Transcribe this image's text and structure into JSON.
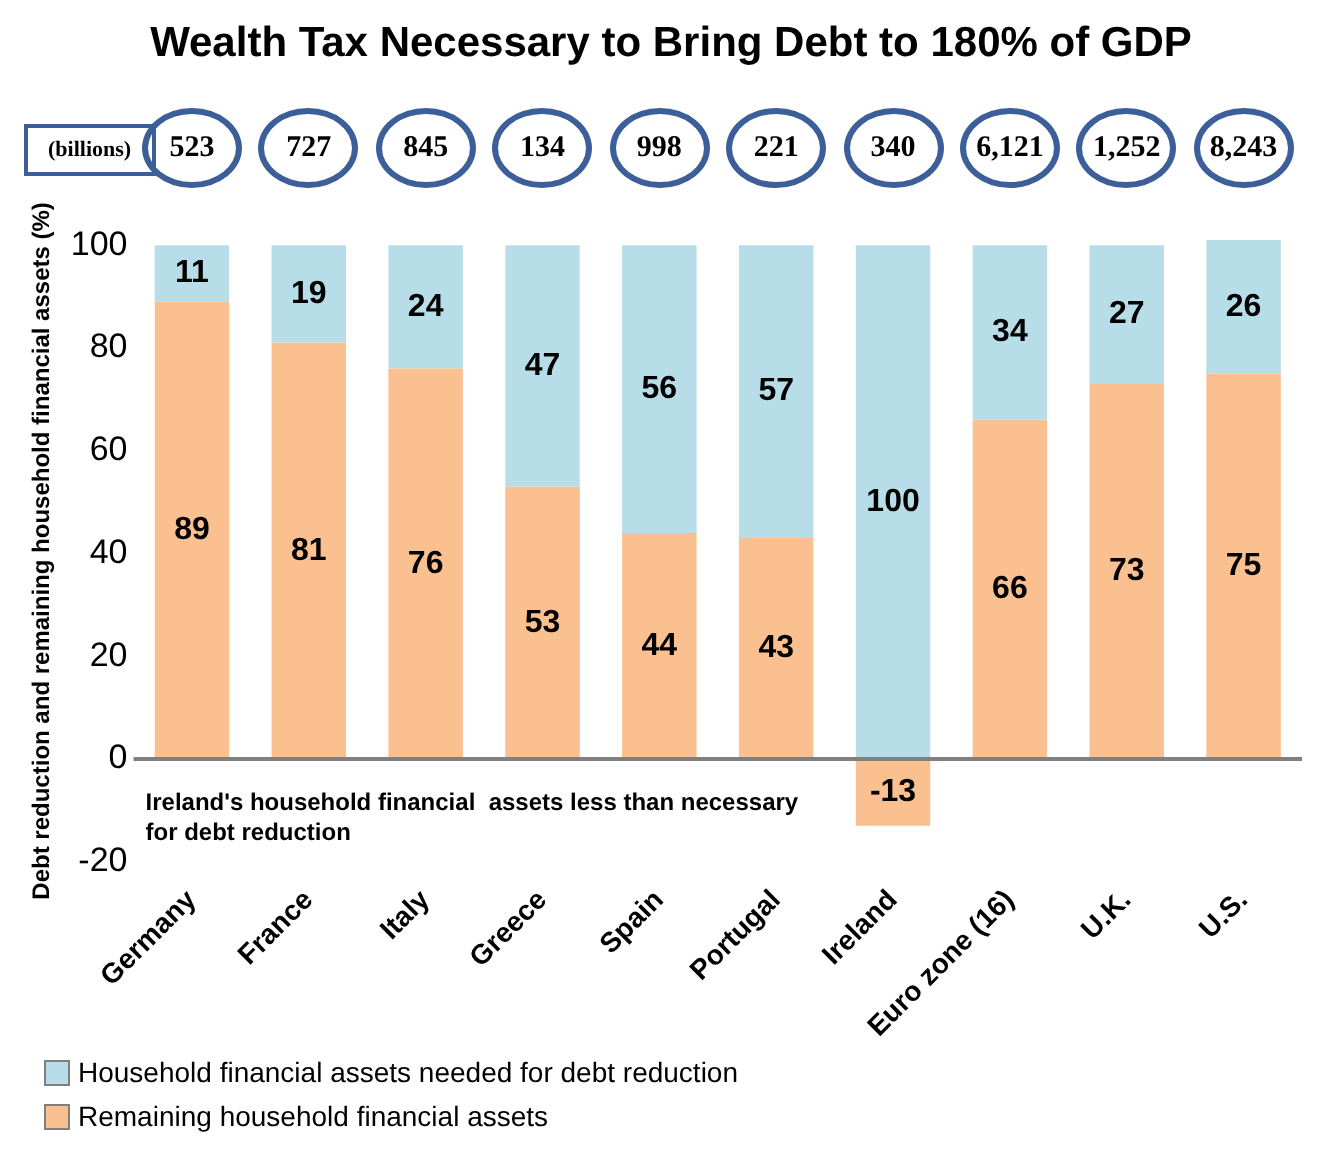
{
  "chart_data": {
    "type": "bar",
    "title": "Wealth Tax Necessary to Bring Debt to 180% of GDP",
    "ylabel": "Debt reduction and remaining household financial assets (%)",
    "categories": [
      "Germany",
      "France",
      "Italy",
      "Greece",
      "Spain",
      "Portugal",
      "Ireland",
      "Euro zone (16)",
      "U.K.",
      "U.S."
    ],
    "series": [
      {
        "name": "Remaining household financial assets",
        "color": "#fac090",
        "values": [
          89,
          81,
          76,
          53,
          44,
          43,
          -13,
          66,
          73,
          75
        ]
      },
      {
        "name": "Household financial assets needed for debt reduction",
        "color": "#b7dee8",
        "values": [
          11,
          19,
          24,
          47,
          56,
          57,
          100,
          34,
          27,
          26
        ]
      }
    ],
    "stacked": true,
    "data_labels": true,
    "ylim": [
      -20,
      101
    ],
    "ref_lines": [
      {
        "axis": "y",
        "value": 0,
        "color": "#808080"
      }
    ],
    "yticks": [
      -20,
      0,
      20,
      40,
      60,
      80,
      100
    ],
    "grid": false,
    "legend": "bottom",
    "annotations": [
      "(billions)",
      "523",
      "727",
      "845",
      "134",
      "998",
      "221",
      "340",
      "6,121",
      "1,252",
      "8,243",
      "Ireland's household financial  assets less than necessary for debt reduction"
    ]
  }
}
